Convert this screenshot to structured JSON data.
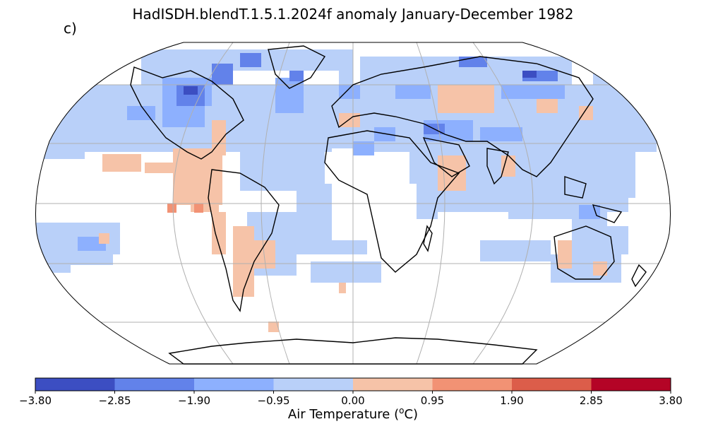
{
  "title": "HadISDH.blendT.1.5.1.2024f anomaly January-December 1982",
  "panel_label": "c)",
  "colorbar": {
    "label": "Air Temperature (",
    "label_sup": "o",
    "label_end": "C)",
    "ticks": [
      "−3.80",
      "−2.85",
      "−1.90",
      "−0.95",
      "0.00",
      "0.95",
      "1.90",
      "2.85",
      "3.80"
    ],
    "bin_colors": [
      "#3c4ec2",
      "#6282ea",
      "#8db0fe",
      "#b9d0f9",
      "#f6c3a8",
      "#f29274",
      "#dc5d4a",
      "#b40426"
    ]
  },
  "colors": {
    "grid": "#b0b0b0",
    "coast": "#000000"
  }
}
